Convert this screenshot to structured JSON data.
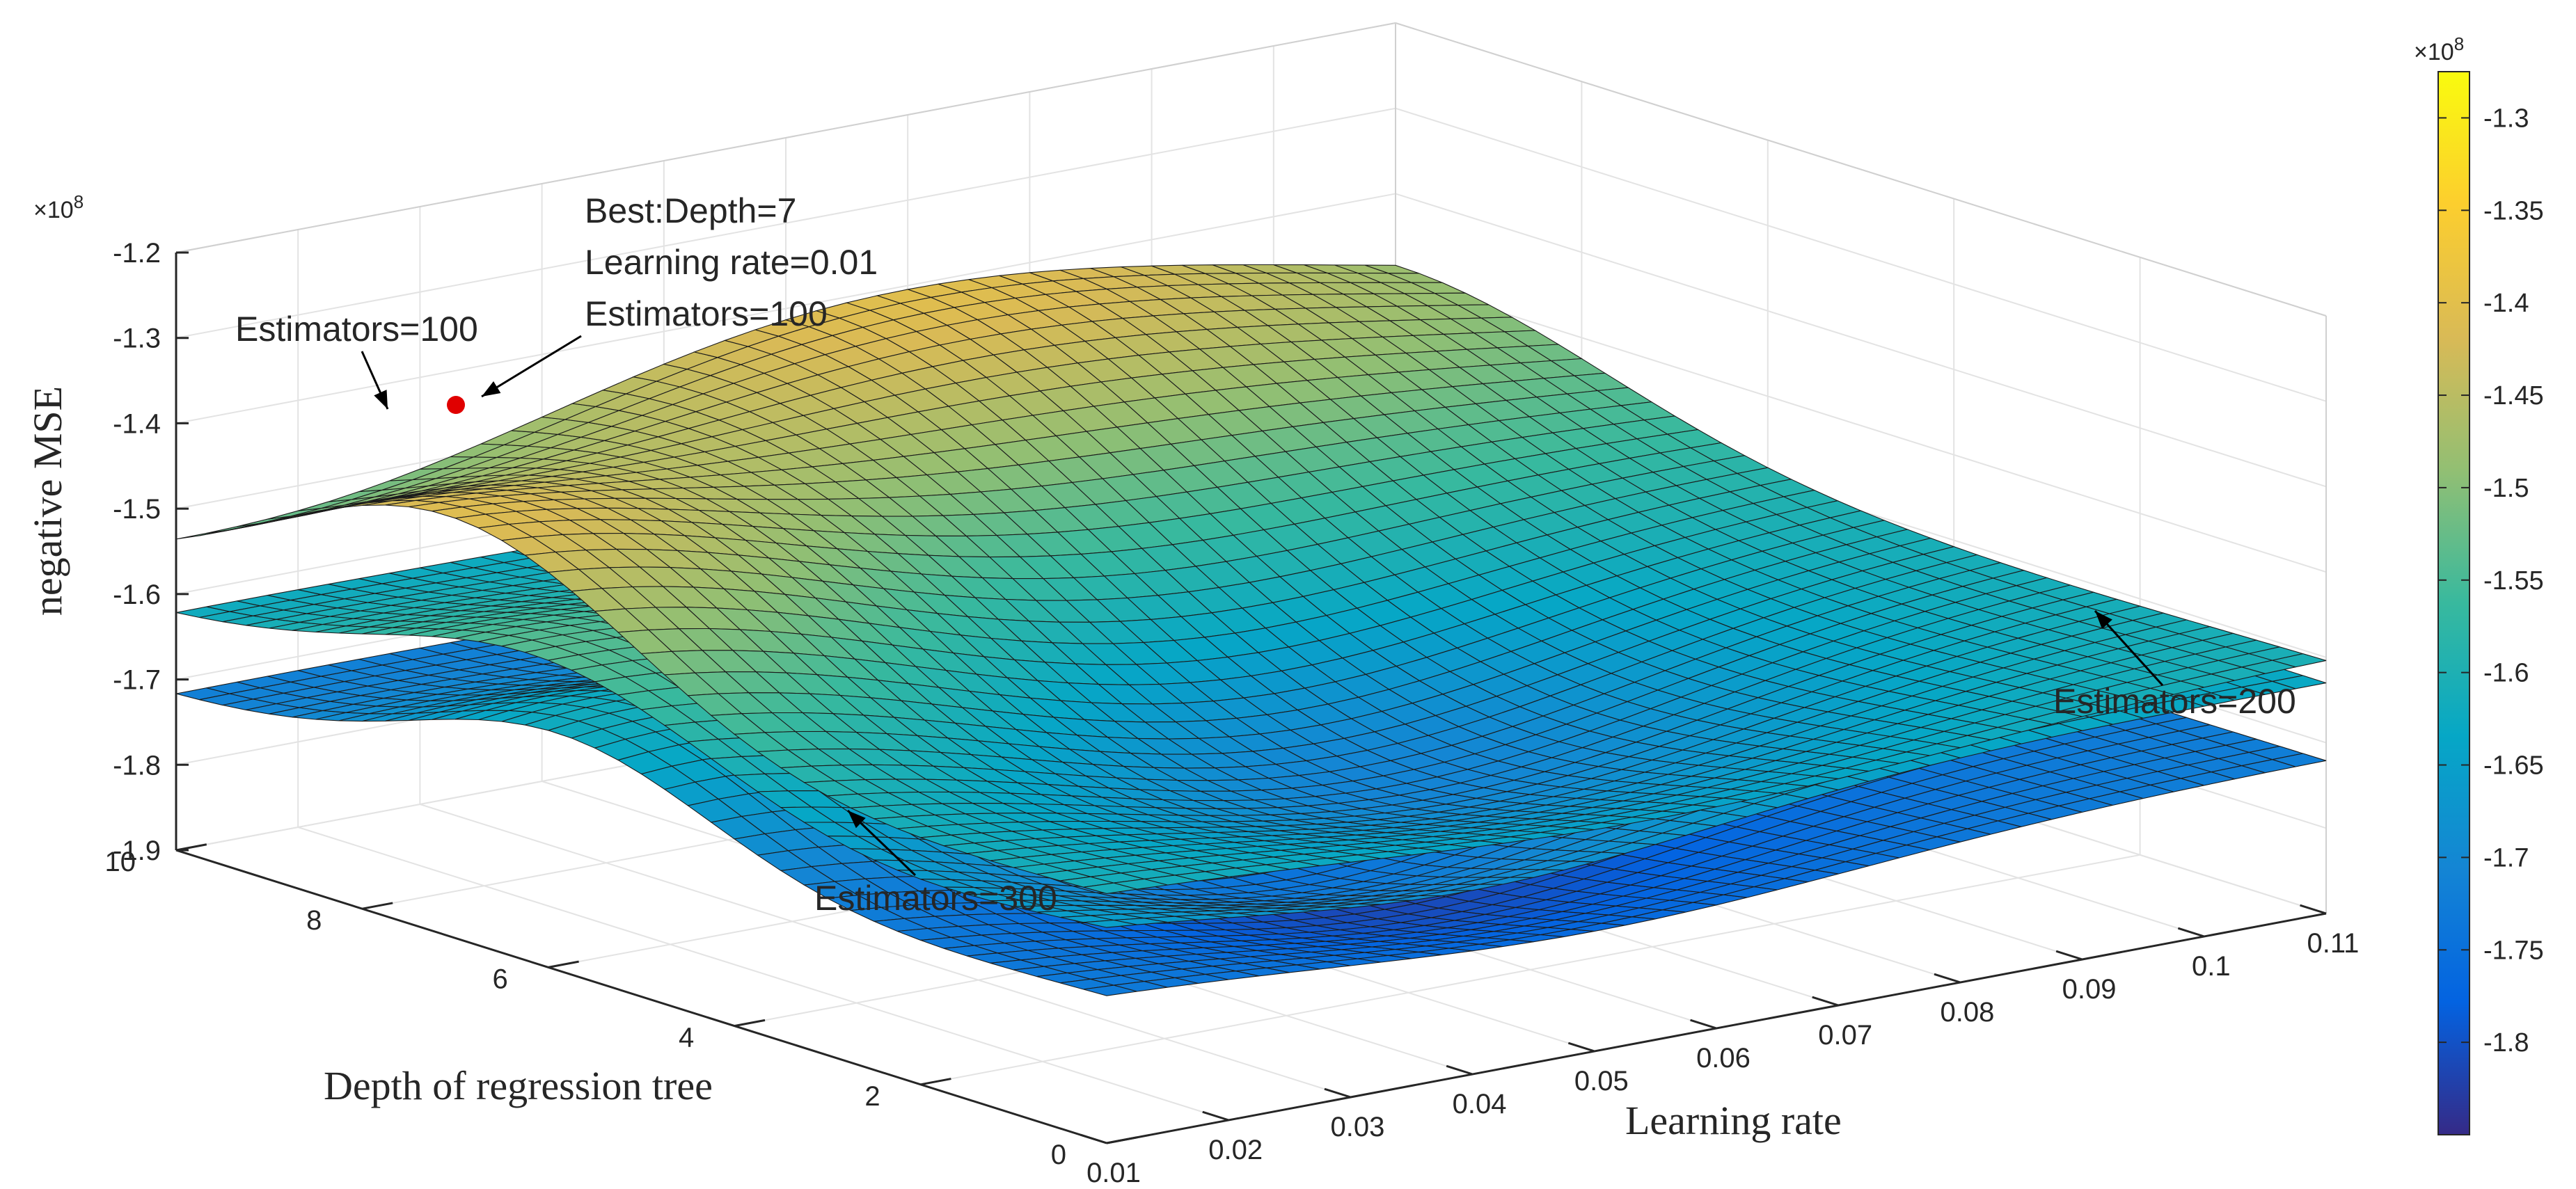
{
  "chart_data": {
    "type": "surface3d",
    "title": "",
    "xlabel": "Learning rate",
    "ylabel": "Depth of regression tree",
    "zlabel": "negative MSE",
    "x_ticks": [
      "0.01",
      "0.02",
      "0.03",
      "0.04",
      "0.05",
      "0.06",
      "0.07",
      "0.08",
      "0.09",
      "0.1",
      "0.11"
    ],
    "x_tick_values": [
      0.01,
      0.02,
      0.03,
      0.04,
      0.05,
      0.06,
      0.07,
      0.08,
      0.09,
      0.1,
      0.11
    ],
    "y_ticks": [
      "0",
      "2",
      "4",
      "6",
      "8",
      "10"
    ],
    "y_tick_values": [
      0,
      2,
      4,
      6,
      8,
      10
    ],
    "z_ticks": [
      "-1.2",
      "-1.3",
      "-1.4",
      "-1.5",
      "-1.6",
      "-1.7",
      "-1.8",
      "-1.9"
    ],
    "z_tick_values": [
      -1.2,
      -1.3,
      -1.4,
      -1.5,
      -1.6,
      -1.7,
      -1.8,
      -1.9
    ],
    "z_exponent": "×10",
    "z_exponent_power": "8",
    "xlim": [
      0.01,
      0.11
    ],
    "ylim": [
      0,
      10
    ],
    "zlim": [
      -1.9,
      -1.2
    ],
    "grid": true,
    "colormap": "parula",
    "colorbar": {
      "ticks": [
        "-1.3",
        "-1.35",
        "-1.4",
        "-1.45",
        "-1.5",
        "-1.55",
        "-1.6",
        "-1.65",
        "-1.7",
        "-1.75",
        "-1.8"
      ],
      "tick_values": [
        -1.3,
        -1.35,
        -1.4,
        -1.45,
        -1.5,
        -1.55,
        -1.6,
        -1.65,
        -1.7,
        -1.75,
        -1.8
      ],
      "range": [
        -1.85,
        -1.275
      ],
      "exponent": "×10",
      "exponent_power": "8"
    },
    "series": [
      {
        "name": "Estimators=100",
        "peak": {
          "learning_rate": 0.01,
          "depth": 7,
          "value": -1.38
        },
        "edge_value_at_lr_0.11": -1.6
      },
      {
        "name": "Estimators=200",
        "edge_value_at_lr_0.11": -1.61
      },
      {
        "name": "Estimators=300",
        "edge_value_at_lr_0.11": -1.65
      }
    ],
    "best_point": {
      "learning_rate": 0.01,
      "depth": 7,
      "estimators": 100,
      "value": -1.38,
      "color": "#e00000"
    },
    "annotations": {
      "best_lines": [
        "Best:Depth=7",
        "Learning rate=0.01",
        "Estimators=100"
      ],
      "est100": "Estimators=100",
      "est200": "Estimators=200",
      "est300": "Estimators=300"
    }
  }
}
